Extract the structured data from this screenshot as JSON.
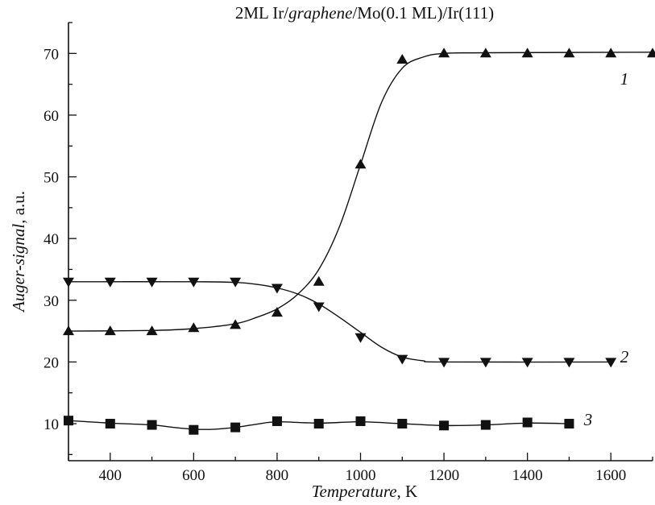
{
  "chart_data": {
    "type": "line",
    "title_parts": [
      {
        "text": "2ML Ir/",
        "italic": false
      },
      {
        "text": "graphene",
        "italic": true
      },
      {
        "text": "/Mo(0.1 ML)/Ir(111)",
        "italic": false
      }
    ],
    "xlabel_parts": [
      {
        "text": "Temperature",
        "italic": true
      },
      {
        "text": ", K",
        "italic": false
      }
    ],
    "ylabel_parts": [
      {
        "text": "Auger-signal",
        "italic": true
      },
      {
        "text": ", a.u.",
        "italic": false
      }
    ],
    "xlim": [
      300,
      1700
    ],
    "ylim": [
      4,
      75
    ],
    "x_ticks": [
      400,
      600,
      800,
      1000,
      1200,
      1400,
      1600
    ],
    "y_ticks": [
      10,
      20,
      30,
      40,
      50,
      60,
      70
    ],
    "grid": false,
    "series": [
      {
        "name": "1",
        "marker": "triangle-up",
        "x": [
          300,
          400,
          500,
          600,
          700,
          800,
          900,
          1000,
          1100,
          1200,
          1300,
          1400,
          1500,
          1600,
          1700
        ],
        "y": [
          25,
          25,
          25,
          25.5,
          26,
          28,
          33,
          52,
          69,
          70,
          70,
          70,
          70,
          70,
          70
        ],
        "curve": [
          [
            300,
            25
          ],
          [
            500,
            25.1
          ],
          [
            600,
            25.4
          ],
          [
            700,
            26.2
          ],
          [
            750,
            27.2
          ],
          [
            800,
            28.6
          ],
          [
            850,
            31
          ],
          [
            900,
            35
          ],
          [
            950,
            42
          ],
          [
            1000,
            52
          ],
          [
            1050,
            62
          ],
          [
            1100,
            67.6
          ],
          [
            1150,
            69.4
          ],
          [
            1200,
            70
          ],
          [
            1300,
            70.1
          ],
          [
            1700,
            70.2
          ]
        ]
      },
      {
        "name": "2",
        "marker": "triangle-down",
        "x": [
          300,
          400,
          500,
          600,
          700,
          800,
          900,
          1000,
          1100,
          1200,
          1300,
          1400,
          1500,
          1600
        ],
        "y": [
          33,
          33,
          33,
          33,
          33,
          32,
          29,
          24,
          20.5,
          20,
          20,
          20,
          20,
          20
        ],
        "curve": [
          [
            300,
            33
          ],
          [
            600,
            33
          ],
          [
            700,
            32.9
          ],
          [
            750,
            32.6
          ],
          [
            800,
            32
          ],
          [
            850,
            31
          ],
          [
            900,
            29.4
          ],
          [
            950,
            27.2
          ],
          [
            1000,
            24.8
          ],
          [
            1050,
            22.4
          ],
          [
            1100,
            20.8
          ],
          [
            1150,
            20.2
          ],
          [
            1200,
            20
          ],
          [
            1600,
            20
          ]
        ]
      },
      {
        "name": "3",
        "marker": "square",
        "x": [
          300,
          400,
          500,
          600,
          700,
          800,
          900,
          1000,
          1100,
          1200,
          1300,
          1400,
          1500
        ],
        "y": [
          10.5,
          10,
          9.8,
          9,
          9.4,
          10.4,
          10,
          10.4,
          10,
          9.7,
          9.8,
          10.2,
          10
        ],
        "curve": [
          [
            300,
            10.5
          ],
          [
            400,
            10.1
          ],
          [
            500,
            9.8
          ],
          [
            550,
            9.4
          ],
          [
            600,
            9.1
          ],
          [
            650,
            9.1
          ],
          [
            700,
            9.4
          ],
          [
            750,
            9.9
          ],
          [
            800,
            10.3
          ],
          [
            900,
            10.1
          ],
          [
            1000,
            10.3
          ],
          [
            1100,
            10
          ],
          [
            1200,
            9.7
          ],
          [
            1300,
            9.8
          ],
          [
            1400,
            10.1
          ],
          [
            1500,
            10
          ]
        ]
      }
    ]
  },
  "colors": {
    "ink": "#111111",
    "background": "#ffffff"
  }
}
